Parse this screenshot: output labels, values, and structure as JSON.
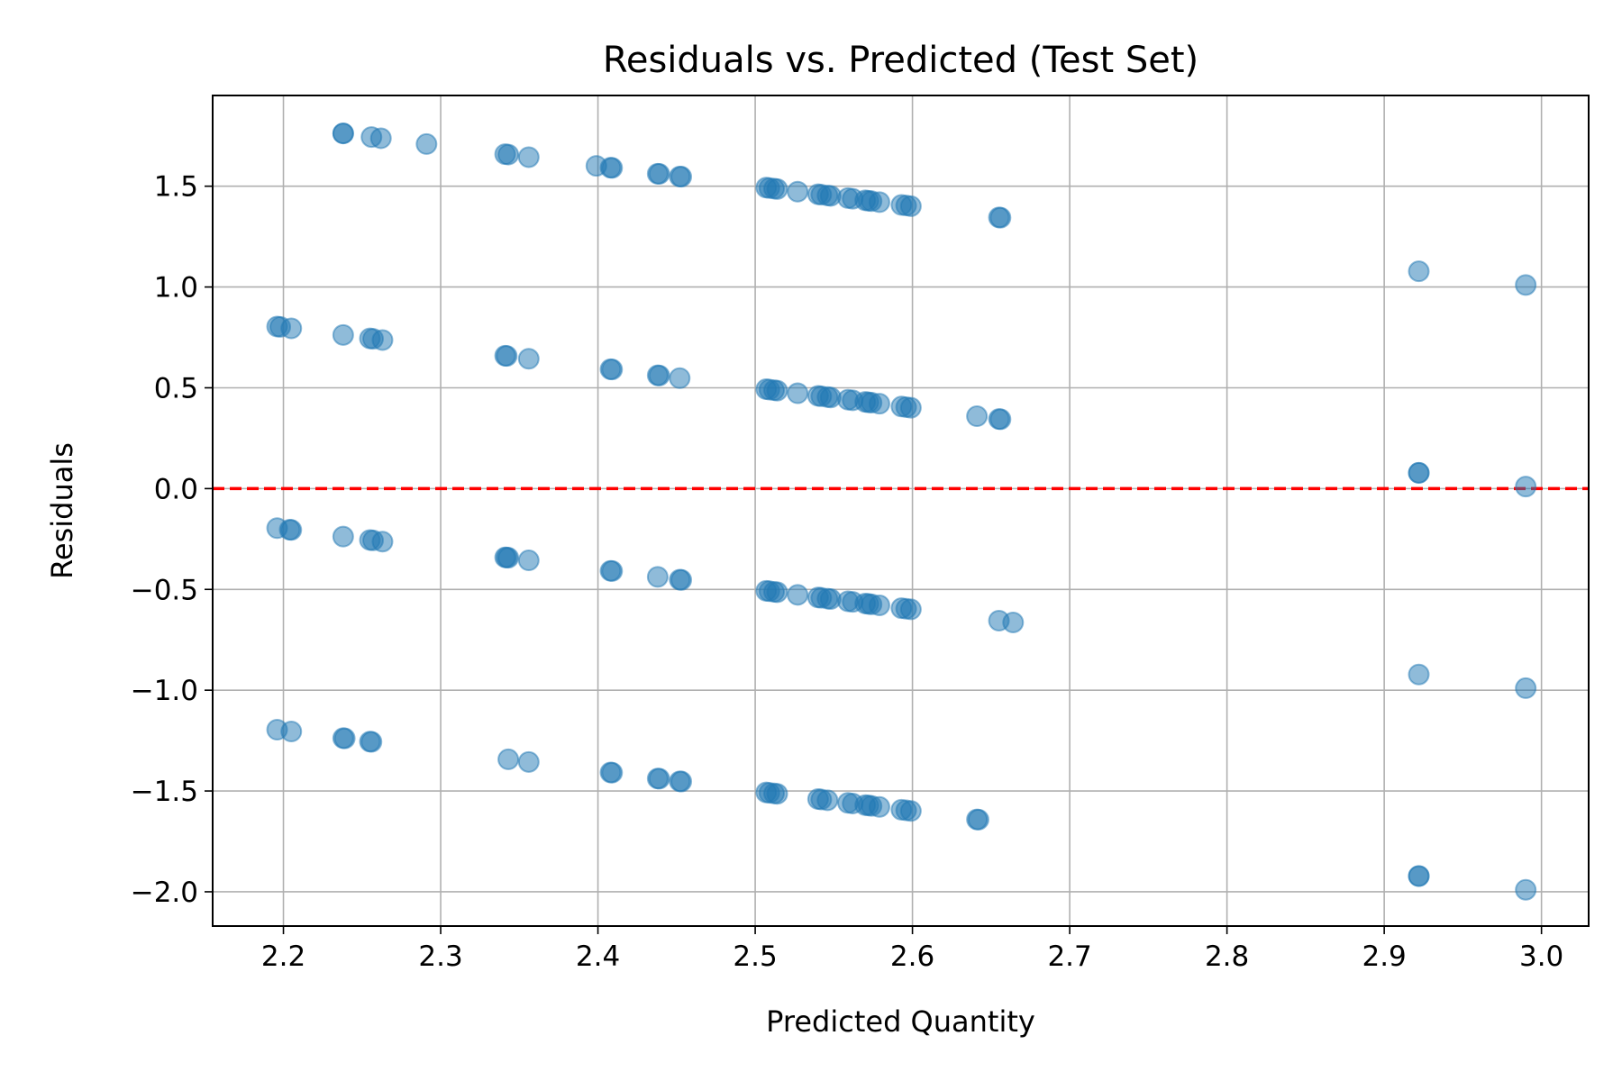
{
  "chart_data": {
    "type": "scatter",
    "title": "Residuals vs. Predicted (Test Set)",
    "xlabel": "Predicted Quantity",
    "ylabel": "Residuals",
    "xlim": [
      2.155,
      3.03
    ],
    "ylim": [
      -2.17,
      1.95
    ],
    "xticks": [
      2.2,
      2.3,
      2.4,
      2.5,
      2.6,
      2.7,
      2.8,
      2.9,
      3.0
    ],
    "xtick_labels": [
      "2.2",
      "2.3",
      "2.4",
      "2.5",
      "2.6",
      "2.7",
      "2.8",
      "2.9",
      "3.0"
    ],
    "yticks": [
      -2.0,
      -1.5,
      -1.0,
      -0.5,
      0.0,
      0.5,
      1.0,
      1.5
    ],
    "ytick_labels": [
      "−2.0",
      "−1.5",
      "−1.0",
      "−0.5",
      "0.0",
      "0.5",
      "1.0",
      "1.5"
    ],
    "grid": true,
    "marker_color": "#1f77b4",
    "marker_alpha": 0.5,
    "reference_line": {
      "y": 0.0,
      "color": "#ff0000",
      "style": "dashed"
    },
    "series": [
      {
        "x": [
          2.238,
          2.238,
          2.256,
          2.262,
          2.291,
          2.341,
          2.343,
          2.356,
          2.399,
          2.408,
          2.409,
          2.438,
          2.439,
          2.452,
          2.453,
          2.507,
          2.509,
          2.512,
          2.514,
          2.527,
          2.54,
          2.542,
          2.546,
          2.548,
          2.559,
          2.562,
          2.57,
          2.572,
          2.574,
          2.579,
          2.593,
          2.596,
          2.599,
          2.655,
          2.656,
          2.922,
          2.99,
          2.196,
          2.198,
          2.205,
          2.238,
          2.255,
          2.257,
          2.263,
          2.341,
          2.342,
          2.356,
          2.408,
          2.409,
          2.438,
          2.439,
          2.452,
          2.507,
          2.509,
          2.512,
          2.514,
          2.527,
          2.54,
          2.542,
          2.546,
          2.548,
          2.559,
          2.562,
          2.57,
          2.572,
          2.574,
          2.579,
          2.593,
          2.596,
          2.599,
          2.641,
          2.655,
          2.656,
          2.922,
          2.922,
          2.99,
          2.196,
          2.204,
          2.205,
          2.238,
          2.255,
          2.257,
          2.263,
          2.341,
          2.342,
          2.343,
          2.356,
          2.408,
          2.409,
          2.438,
          2.452,
          2.453,
          2.507,
          2.509,
          2.512,
          2.514,
          2.527,
          2.54,
          2.542,
          2.546,
          2.548,
          2.559,
          2.562,
          2.57,
          2.572,
          2.574,
          2.579,
          2.593,
          2.596,
          2.599,
          2.655,
          2.664,
          2.922,
          2.99,
          2.196,
          2.205,
          2.238,
          2.239,
          2.255,
          2.256,
          2.343,
          2.356,
          2.408,
          2.409,
          2.438,
          2.439,
          2.452,
          2.453,
          2.507,
          2.509,
          2.512,
          2.514,
          2.54,
          2.542,
          2.546,
          2.559,
          2.562,
          2.57,
          2.572,
          2.574,
          2.579,
          2.593,
          2.596,
          2.599,
          2.641,
          2.642,
          2.922,
          2.922,
          2.99
        ],
        "y": [
          1.762,
          1.762,
          1.744,
          1.738,
          1.709,
          1.659,
          1.657,
          1.644,
          1.601,
          1.592,
          1.591,
          1.562,
          1.561,
          1.548,
          1.547,
          1.493,
          1.491,
          1.488,
          1.486,
          1.473,
          1.46,
          1.458,
          1.454,
          1.452,
          1.441,
          1.438,
          1.43,
          1.428,
          1.426,
          1.421,
          1.407,
          1.404,
          1.401,
          1.345,
          1.344,
          1.078,
          1.01,
          0.804,
          0.802,
          0.795,
          0.762,
          0.745,
          0.743,
          0.737,
          0.659,
          0.658,
          0.644,
          0.592,
          0.591,
          0.562,
          0.561,
          0.548,
          0.493,
          0.491,
          0.488,
          0.486,
          0.473,
          0.46,
          0.458,
          0.454,
          0.452,
          0.441,
          0.438,
          0.43,
          0.428,
          0.426,
          0.421,
          0.407,
          0.404,
          0.401,
          0.359,
          0.345,
          0.344,
          0.078,
          0.078,
          0.01,
          -0.196,
          -0.204,
          -0.205,
          -0.238,
          -0.255,
          -0.257,
          -0.263,
          -0.341,
          -0.342,
          -0.343,
          -0.356,
          -0.408,
          -0.409,
          -0.438,
          -0.452,
          -0.453,
          -0.507,
          -0.509,
          -0.512,
          -0.514,
          -0.527,
          -0.54,
          -0.542,
          -0.546,
          -0.548,
          -0.559,
          -0.562,
          -0.57,
          -0.572,
          -0.574,
          -0.579,
          -0.593,
          -0.596,
          -0.599,
          -0.655,
          -0.664,
          -0.922,
          -0.99,
          -1.196,
          -1.205,
          -1.238,
          -1.239,
          -1.255,
          -1.256,
          -1.343,
          -1.356,
          -1.408,
          -1.409,
          -1.438,
          -1.439,
          -1.452,
          -1.453,
          -1.507,
          -1.509,
          -1.512,
          -1.514,
          -1.54,
          -1.542,
          -1.546,
          -1.559,
          -1.562,
          -1.57,
          -1.572,
          -1.574,
          -1.579,
          -1.593,
          -1.596,
          -1.599,
          -1.641,
          -1.642,
          -1.922,
          -1.922,
          -1.99
        ]
      }
    ]
  }
}
